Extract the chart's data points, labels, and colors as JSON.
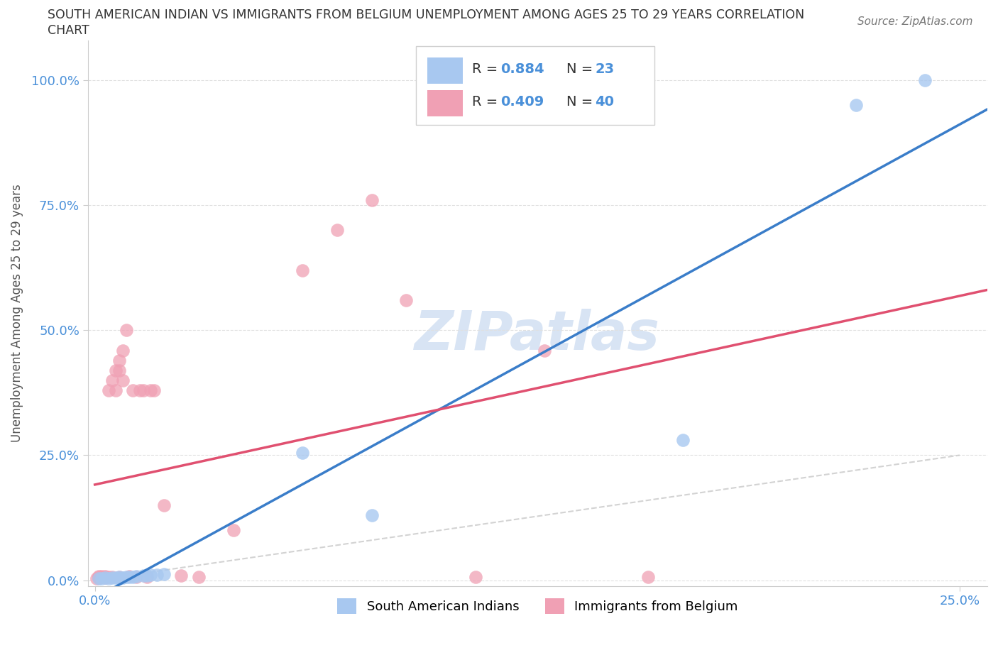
{
  "title_line1": "SOUTH AMERICAN INDIAN VS IMMIGRANTS FROM BELGIUM UNEMPLOYMENT AMONG AGES 25 TO 29 YEARS CORRELATION",
  "title_line2": "CHART",
  "source": "Source: ZipAtlas.com",
  "ylabel": "Unemployment Among Ages 25 to 29 years",
  "legend_label1": "South American Indians",
  "legend_label2": "Immigrants from Belgium",
  "R1": "0.884",
  "N1": "23",
  "R2": "0.409",
  "N2": "40",
  "blue_fill": "#A8C8F0",
  "pink_fill": "#F0A0B4",
  "blue_line": "#3A7DC9",
  "pink_line": "#E05070",
  "diag_color": "#C8C8C8",
  "text_dark": "#333333",
  "axis_blue": "#4A90D9",
  "watermark_color": "#D8E4F4",
  "xlim": [
    -0.002,
    0.258
  ],
  "ylim": [
    -0.012,
    1.08
  ],
  "xticks": [
    0.0,
    0.25
  ],
  "yticks": [
    0.0,
    0.25,
    0.5,
    0.75,
    1.0
  ],
  "blue_x": [
    0.001,
    0.002,
    0.003,
    0.004,
    0.005,
    0.006,
    0.007,
    0.007,
    0.008,
    0.009,
    0.01,
    0.011,
    0.012,
    0.014,
    0.015,
    0.016,
    0.018,
    0.02,
    0.06,
    0.08,
    0.17,
    0.22,
    0.24
  ],
  "blue_y": [
    0.003,
    0.004,
    0.005,
    0.004,
    0.005,
    0.005,
    0.004,
    0.006,
    0.005,
    0.006,
    0.007,
    0.007,
    0.008,
    0.009,
    0.009,
    0.01,
    0.01,
    0.012,
    0.255,
    0.13,
    0.28,
    0.95,
    1.0
  ],
  "pink_x": [
    0.0005,
    0.001,
    0.001,
    0.001,
    0.002,
    0.002,
    0.003,
    0.003,
    0.003,
    0.004,
    0.004,
    0.005,
    0.005,
    0.006,
    0.006,
    0.007,
    0.007,
    0.007,
    0.008,
    0.008,
    0.009,
    0.01,
    0.011,
    0.012,
    0.013,
    0.014,
    0.015,
    0.016,
    0.017,
    0.02,
    0.025,
    0.03,
    0.04,
    0.06,
    0.07,
    0.08,
    0.09,
    0.11,
    0.13,
    0.16
  ],
  "pink_y": [
    0.004,
    0.005,
    0.006,
    0.008,
    0.006,
    0.008,
    0.005,
    0.007,
    0.008,
    0.006,
    0.38,
    0.4,
    0.007,
    0.42,
    0.38,
    0.42,
    0.44,
    0.007,
    0.4,
    0.46,
    0.5,
    0.008,
    0.38,
    0.007,
    0.38,
    0.38,
    0.007,
    0.38,
    0.38,
    0.15,
    0.009,
    0.007,
    0.1,
    0.62,
    0.7,
    0.76,
    0.56,
    0.007,
    0.46,
    0.007
  ]
}
